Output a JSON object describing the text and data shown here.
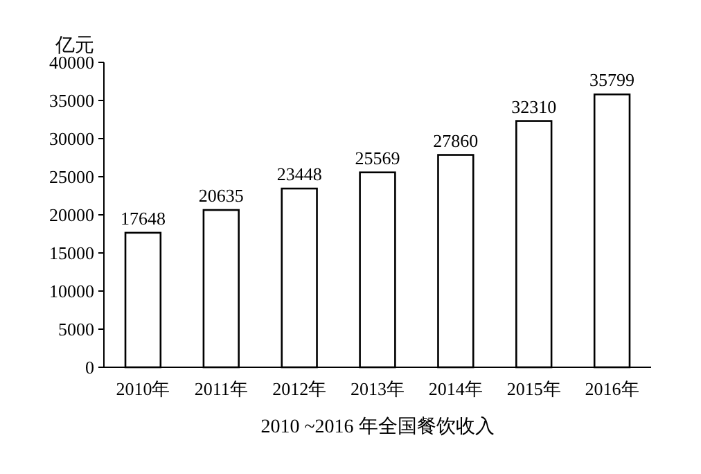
{
  "chart_data": {
    "type": "bar",
    "title": "2010 ~2016 年全国餐饮收入",
    "ylabel": "亿元",
    "categories": [
      "2010年",
      "2011年",
      "2012年",
      "2013年",
      "2014年",
      "2015年",
      "2016年"
    ],
    "values": [
      17648,
      20635,
      23448,
      25569,
      27860,
      32310,
      35799
    ],
    "color": "#ffffff",
    "ylim": [
      0,
      40000
    ],
    "yticks": [
      0,
      5000,
      10000,
      15000,
      20000,
      25000,
      30000,
      35000,
      40000
    ],
    "data_labels": true
  }
}
